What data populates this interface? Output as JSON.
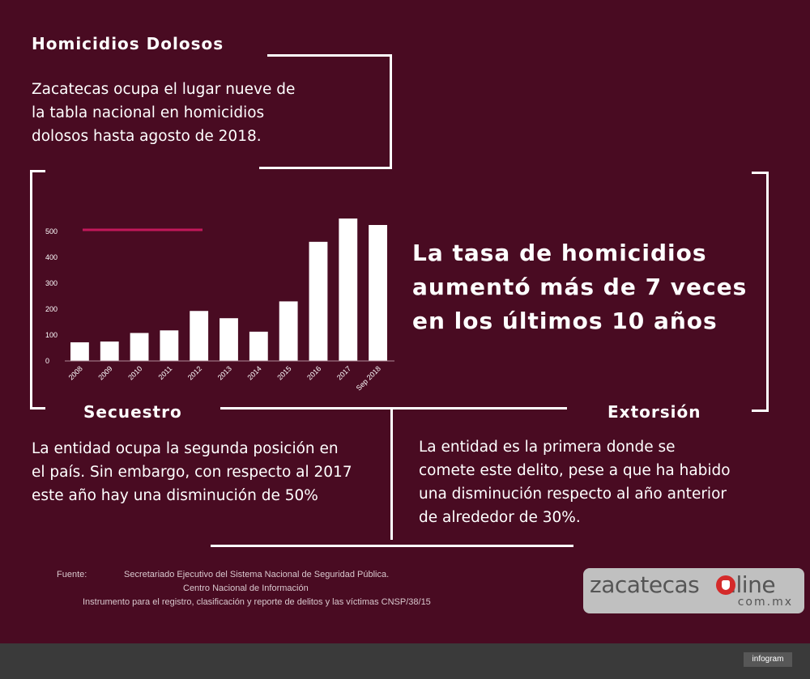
{
  "homicidios": {
    "heading": "Homicidios Dolosos",
    "text_lines": [
      "Zacatecas ocupa el lugar nueve de",
      "la tabla nacional en homicidios",
      "dolosos hasta agosto de 2018."
    ]
  },
  "headline_lines": [
    "La tasa de homicidios",
    "aumentó más de 7 veces",
    "en los últimos 10 años"
  ],
  "secuestro": {
    "heading": "Secuestro",
    "text_lines": [
      "La entidad ocupa la segunda posición en",
      "el país. Sin embargo, con respecto al 2017",
      "este año hay una disminución de 50%"
    ]
  },
  "extorsion": {
    "heading": "Extorsión",
    "text_lines": [
      "La entidad es la primera  donde se",
      "comete este delito, pese a que ha habido",
      "una disminución respecto al año anterior",
      "de alrededor de 30%."
    ]
  },
  "source": {
    "label": "Fuente:",
    "line1": "Secretariado Ejecutivo del Sistema Nacional de Seguridad Pública.",
    "line2": "Centro Nacional de Información",
    "line3": "Instrumento para el registro, clasificación y reporte de delitos y las víctimas CNSP/38/15"
  },
  "logo": {
    "text_left": "zacatecas",
    "text_right": "nline",
    "sub": "com.mx"
  },
  "footer": {
    "badge": "infogram"
  },
  "colors": {
    "background": "#490b22",
    "bars": "#ffffff",
    "legend_line": "#c2185b",
    "footer": "#3a3a3a"
  },
  "chart_data": {
    "type": "bar",
    "categories": [
      "2008",
      "2009",
      "2010",
      "2011",
      "2012",
      "2013",
      "2014",
      "2015",
      "2016",
      "2017",
      "Sep 2018"
    ],
    "values": [
      72,
      75,
      108,
      118,
      193,
      165,
      113,
      230,
      460,
      550,
      525
    ],
    "yticks": [
      0,
      100,
      200,
      300,
      400,
      500
    ],
    "ylim": [
      0,
      550
    ],
    "title": "",
    "xlabel": "",
    "ylabel": "",
    "grid": false,
    "legend_marker_color": "#c2185b"
  }
}
